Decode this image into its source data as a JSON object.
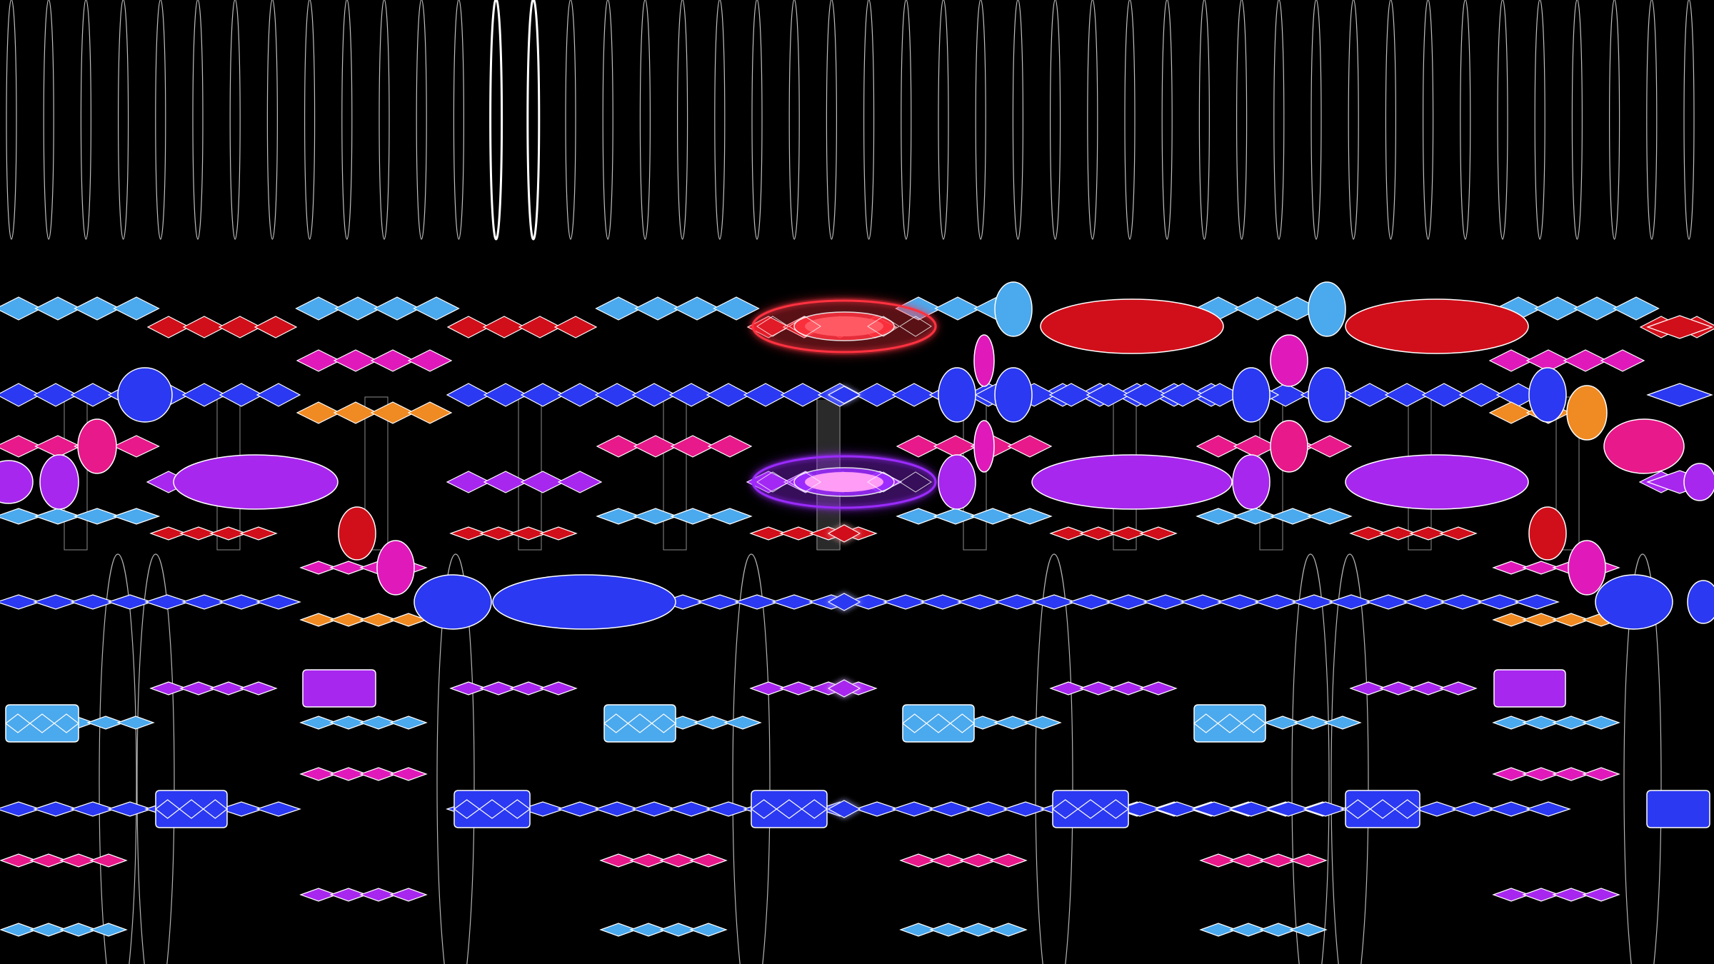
{
  "scene": {
    "type": "music-animation-visualizer",
    "background": "#000000",
    "outline": "#ffffff",
    "colors": {
      "light_blue": "#4ba9ee",
      "red": "#d10f1a",
      "blue": "#2b39f2",
      "magenta": "#e01aba",
      "orange": "#f08a22",
      "pink": "#e8198a",
      "purple": "#a827ee",
      "glow_red": "#ff3340",
      "glow_purple": "#9b2cff"
    },
    "shape_kinds": [
      "diamond-chain",
      "ellipse",
      "rounded-block",
      "string-ellipse",
      "glow-ring"
    ],
    "active_notes": [
      "red",
      "purple",
      "blue",
      "magenta"
    ]
  }
}
